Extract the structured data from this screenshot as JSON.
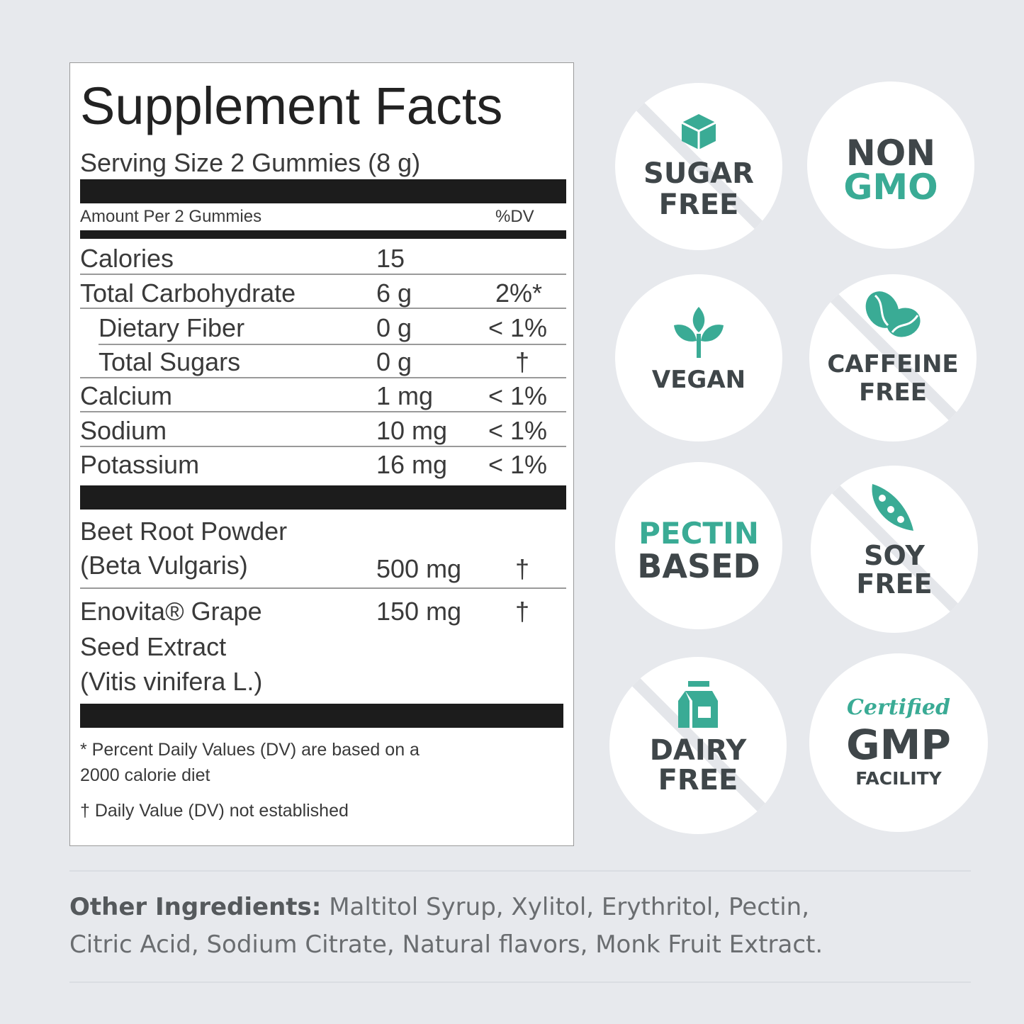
{
  "facts": {
    "title": "Supplement Facts",
    "serving_size": "Serving Size 2 Gummies (8 g)",
    "amount_per": "Amount Per 2 Gummies",
    "dv_header": "%DV",
    "nutrients": [
      {
        "name": "Calories",
        "amount": "15",
        "dv": ""
      },
      {
        "name": "Total Carbohydrate",
        "amount": "6 g",
        "dv": "2%*"
      },
      {
        "name": "Dietary Fiber",
        "amount": "0 g",
        "dv": "< 1%"
      },
      {
        "name": "Total Sugars",
        "amount": "0 g",
        "dv": "†"
      },
      {
        "name": "Calcium",
        "amount": "1 mg",
        "dv": "< 1%"
      },
      {
        "name": "Sodium",
        "amount": "10 mg",
        "dv": "< 1%"
      },
      {
        "name": "Potassium",
        "amount": "16 mg",
        "dv": "< 1%"
      }
    ],
    "ingredients": [
      {
        "name_line1": "Beet Root Powder",
        "name_line2": "(Beta Vulgaris)",
        "amount": "500 mg",
        "dv": "†"
      },
      {
        "name_line1": "Enovita® Grape",
        "name_line2": "Seed Extract",
        "name_line3": "(Vitis vinifera L.)",
        "amount": "150 mg",
        "dv": "†"
      }
    ],
    "footnote_1_line1": "* Percent Daily Values (DV) are based on a",
    "footnote_1_line2": "2000 calorie diet",
    "footnote_2": "† Daily Value (DV) not established"
  },
  "badges": [
    {
      "line1": "SUGAR",
      "line2": "FREE",
      "icon": "sugar-cube-icon"
    },
    {
      "line1": "NON",
      "line2": "GMO"
    },
    {
      "line1": "VEGAN",
      "icon": "plant-sprout-icon"
    },
    {
      "line1": "CAFFEINE",
      "line2": "FREE",
      "icon": "coffee-bean-icon"
    },
    {
      "line1": "PECTIN",
      "line2": "BASED"
    },
    {
      "line1": "SOY",
      "line2": "FREE",
      "icon": "soy-pod-icon"
    },
    {
      "line1": "DAIRY",
      "line2": "FREE",
      "icon": "milk-carton-icon"
    },
    {
      "line1": "Certified",
      "line2": "GMP",
      "line3": "FACILITY"
    }
  ],
  "other_ingredients": {
    "label": "Other Ingredients:",
    "line1": " Maltitol Syrup, Xylitol, Erythritol, Pectin,",
    "line2": "Citric Acid, Sodium Citrate, Natural flavors, Monk Fruit Extract."
  },
  "colors": {
    "accent": "#3aab95",
    "badge_text": "#3f4649",
    "background": "#e7e9ed"
  }
}
